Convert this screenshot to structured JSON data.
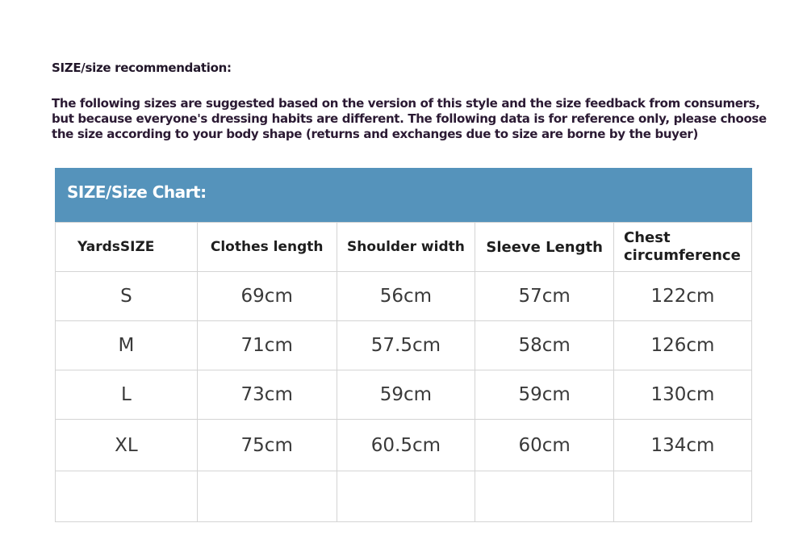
{
  "title": "SIZE/size recommendation:",
  "intro": "The following sizes are suggested based on the version of this style and the size feedback from consumers, but because everyone's dressing habits are different. The following data is for reference only, please choose the size according to your body shape (returns and exchanges due to size are borne by the buyer)",
  "chart_title": "SIZE/Size Chart:",
  "header_color": "#5593bb",
  "columns": [
    "YardsSIZE",
    "Clothes length",
    "Shoulder width",
    "Sleeve Length",
    "Chest circumference"
  ],
  "rows": [
    [
      "S",
      "69cm",
      "56cm",
      "57cm",
      "122cm"
    ],
    [
      "M",
      "71cm",
      "57.5cm",
      "58cm",
      "126cm"
    ],
    [
      "L",
      "73cm",
      "59cm",
      "59cm",
      "130cm"
    ],
    [
      "XL",
      "75cm",
      "60.5cm",
      "60cm",
      "134cm"
    ]
  ]
}
